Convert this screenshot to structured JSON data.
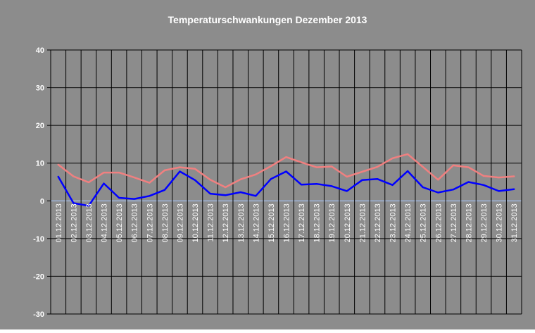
{
  "chart_data": {
    "type": "line",
    "title": "Temperaturschwankungen Dezember 2013",
    "xlabel": "",
    "ylabel": "",
    "ylim": [
      -30,
      40
    ],
    "yticks": [
      "40",
      "30",
      "20",
      "10",
      "0",
      "-10",
      "-20",
      "-30"
    ],
    "grid": true,
    "legend": "none",
    "categories": [
      "01.12.2013",
      "02.12.2013",
      "03.12.2013",
      "04.12.2013",
      "05.12.2013",
      "06.12.2013",
      "07.12.2013",
      "08.12.2013",
      "09.12.2013",
      "10.12.2013",
      "11.12.2013",
      "12.12.2013",
      "13.12.2013",
      "14.12.2013",
      "15.12.2013",
      "16.12.2013",
      "17.12.2013",
      "18.12.2013",
      "19.12.2013",
      "20.12.2013",
      "21.12.2013",
      "22.12.2013",
      "23.12.2013",
      "24.12.2013",
      "25.12.2013",
      "26.12.2013",
      "27.12.2013",
      "28.12.2013",
      "29.12.2013",
      "30.12.2013",
      "31.12.2013"
    ],
    "series": [
      {
        "color": "#f08080",
        "values": [
          9.6,
          6.5,
          4.9,
          7.5,
          7.5,
          6.2,
          4.8,
          8.1,
          8.9,
          8.5,
          5.6,
          3.6,
          5.7,
          7.0,
          9.2,
          11.6,
          10.2,
          8.9,
          9.1,
          6.4,
          7.7,
          9.0,
          11.3,
          12.4,
          9.0,
          5.6,
          9.4,
          8.9,
          6.6,
          6.2,
          6.5
        ]
      },
      {
        "color": "#0000ff",
        "values": [
          6.4,
          -0.6,
          -1.3,
          4.6,
          0.8,
          0.5,
          1.3,
          2.9,
          7.8,
          5.5,
          1.9,
          1.5,
          2.3,
          1.3,
          5.8,
          7.8,
          4.3,
          4.5,
          3.9,
          2.6,
          5.5,
          5.8,
          4.2,
          7.9,
          3.6,
          2.2,
          3.0,
          5.0,
          4.2,
          2.6,
          3.1
        ]
      }
    ]
  }
}
